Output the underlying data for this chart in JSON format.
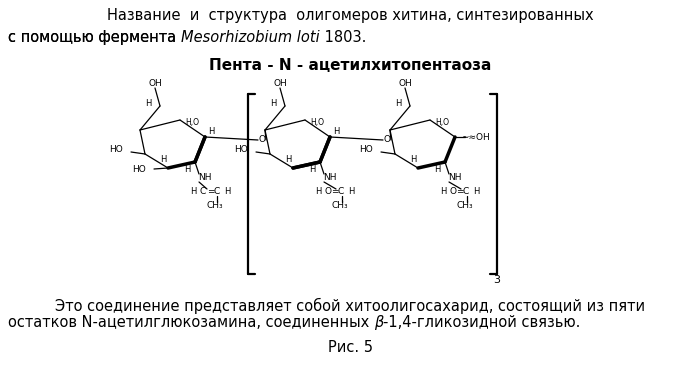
{
  "bg_color": "#ffffff",
  "fig_width": 7.0,
  "fig_height": 3.68,
  "dpi": 100,
  "title_line1": "Название  и  структура  олигомеров хитина, синтезированных",
  "title_line2_normal": "с помощью фермента ",
  "title_line2_italic": "Mesorhizobium loti",
  "title_line2_end": " 1803.",
  "compound_name": "Пента - N - ацетилхитопентаоза",
  "bottom_text_line1": "Это соединение представляет собой хитоолигосахарид, состоящий из пяти",
  "bottom_text_line2_normal": "остатков N-ацетилглюкозамина, соединенных ",
  "bottom_text_line2_italic": "β",
  "bottom_text_line2_end": "-1,4-гликозидной связью.",
  "fig_caption": "Рис. 5",
  "font_size_title": 10.5,
  "font_size_compound": 11,
  "font_size_body": 10.5,
  "font_size_caption": 10.5,
  "lw_thin": 0.9,
  "lw_thick": 2.5,
  "lw_bracket": 1.6,
  "fs_label": 6.5,
  "fs_small": 6.0
}
